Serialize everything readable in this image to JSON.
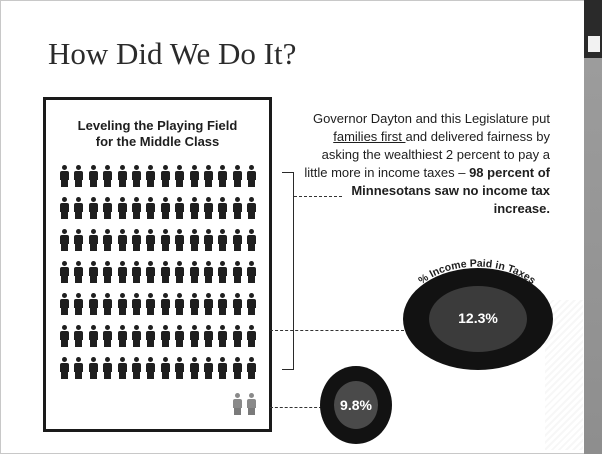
{
  "slide": {
    "title": "How Did We Do It?"
  },
  "infographic": {
    "heading_line1": "Leveling the Playing Field",
    "heading_line2": "for the Middle Class",
    "majority_rows": 7,
    "majority_per_row": 14,
    "minority_count": 2,
    "majority_color": "#1f1f1f",
    "minority_color": "#8a8a8a"
  },
  "description": {
    "part1": "Governor Dayton and this Legislature put ",
    "underlined": "families first ",
    "part2": "and delivered fairness by asking the wealthiest 2 percent to pay a little more in income taxes – ",
    "bold": "98 percent of Minnesotans saw no income tax increase."
  },
  "chart": {
    "arc_label": "% Income Paid in Taxes",
    "majority_rate": "12.3%",
    "top_rate": "9.8%"
  }
}
